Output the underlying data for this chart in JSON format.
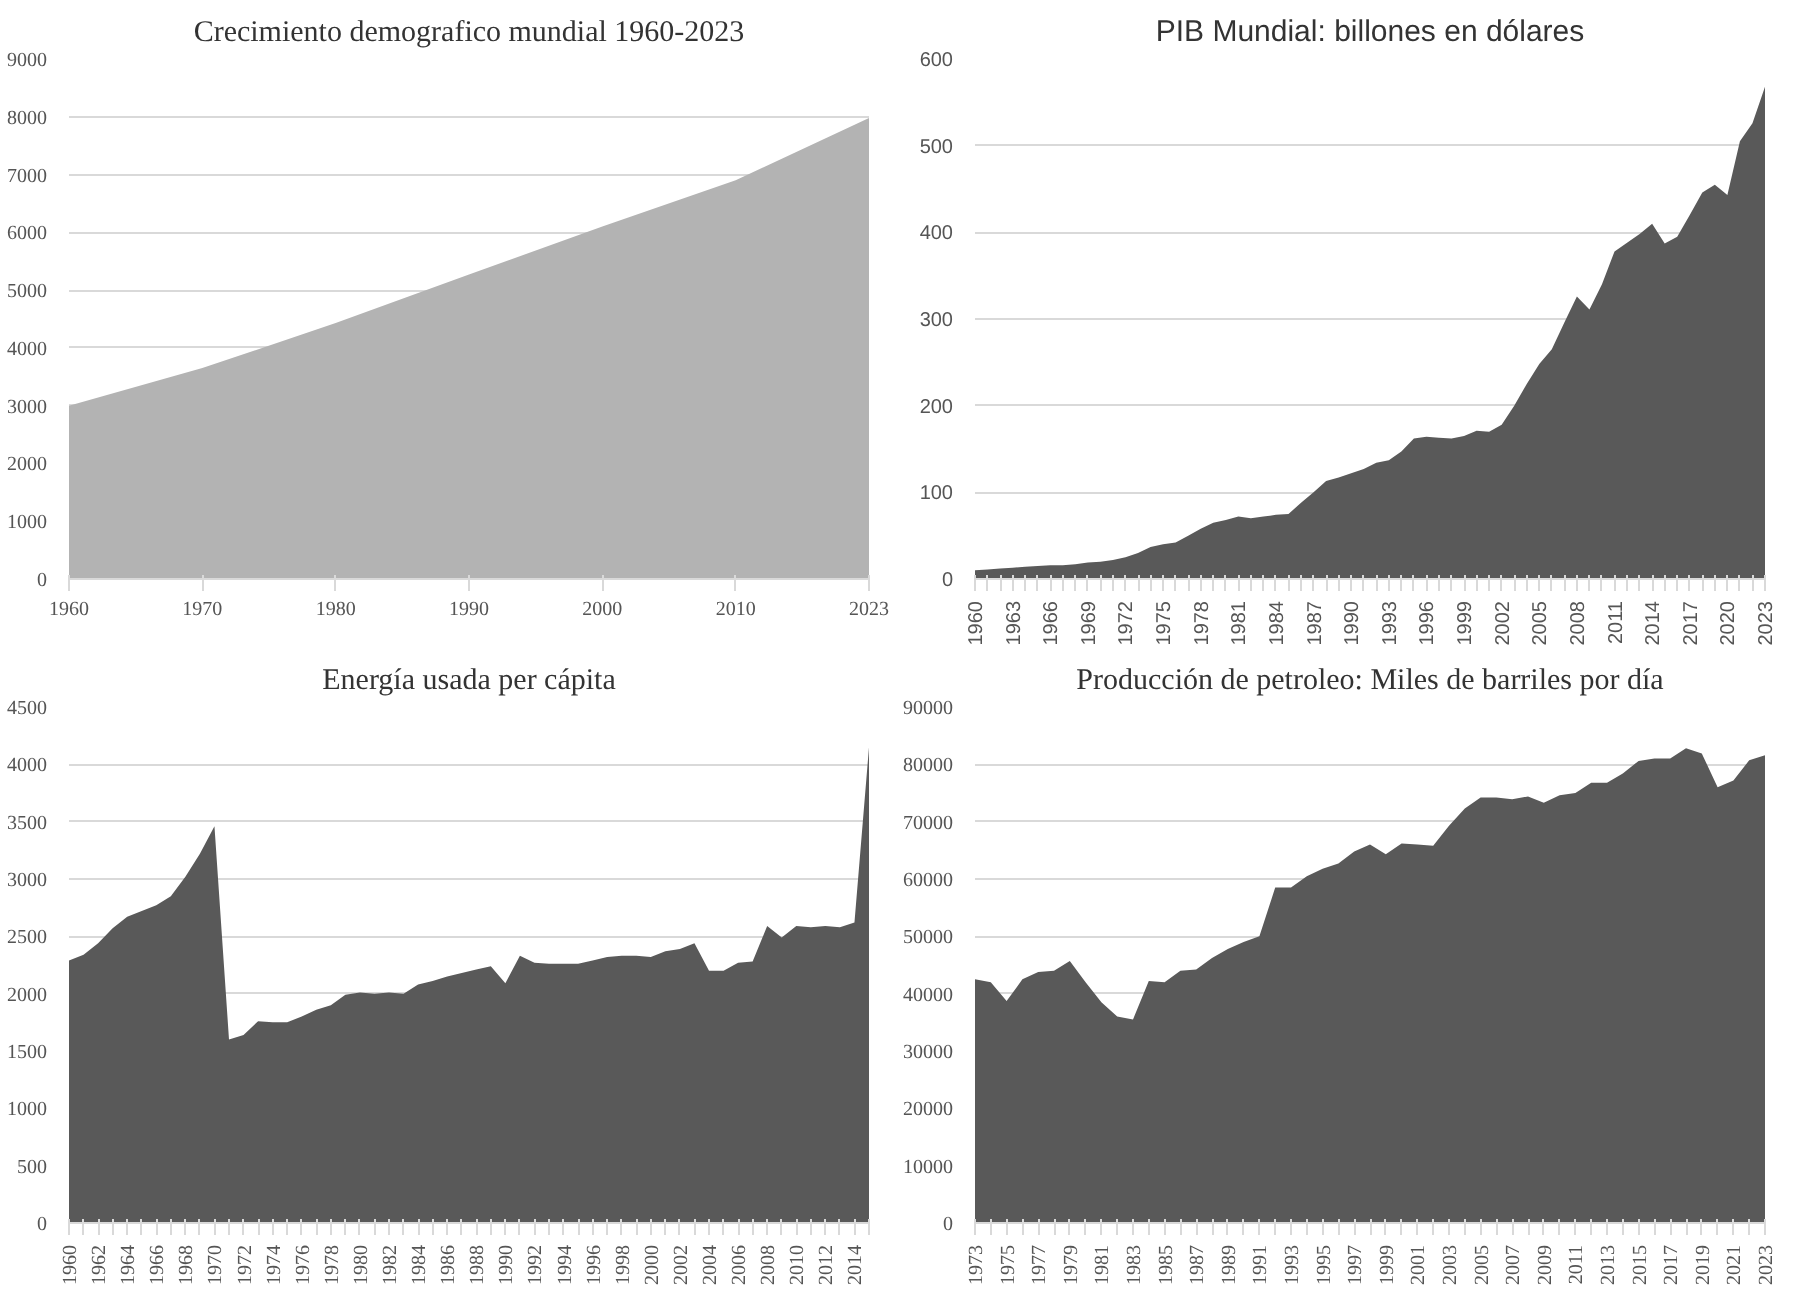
{
  "chart_data": [
    {
      "type": "area",
      "title": "Crecimiento demografico mundial 1960-2023",
      "categories": [
        "1960",
        "1970",
        "1980",
        "1990",
        "2000",
        "2010",
        "2023"
      ],
      "values": [
        3000,
        3650,
        4430,
        5270,
        6100,
        6900,
        7980
      ],
      "color": "#b3b3b3",
      "ylim": [
        0,
        9000
      ],
      "yticks": [
        0,
        1000,
        2000,
        3000,
        4000,
        5000,
        6000,
        7000,
        8000,
        9000
      ],
      "grid": "y"
    },
    {
      "type": "area",
      "title": "PIB Mundial: billones en dólares",
      "categories": [
        "1960",
        null,
        null,
        "1963",
        null,
        null,
        "1966",
        null,
        null,
        "1969",
        null,
        null,
        "1972",
        null,
        null,
        "1975",
        null,
        null,
        "1978",
        null,
        null,
        "1981",
        null,
        null,
        "1984",
        null,
        null,
        "1987",
        null,
        null,
        "1990",
        null,
        null,
        "1993",
        null,
        null,
        "1996",
        null,
        null,
        "1999",
        null,
        null,
        "2002",
        null,
        null,
        "2005",
        null,
        null,
        "2008",
        null,
        null,
        "2011",
        null,
        null,
        "2014",
        null,
        null,
        "2017",
        null,
        null,
        "2020",
        null,
        null,
        "2023"
      ],
      "values": [
        10,
        11,
        12,
        13,
        14,
        15,
        16,
        16,
        17,
        19,
        20,
        22,
        25,
        30,
        37,
        40,
        42,
        50,
        58,
        65,
        68,
        72,
        70,
        72,
        74,
        75,
        88,
        100,
        113,
        117,
        122,
        127,
        134,
        137,
        147,
        162,
        164,
        163,
        162,
        165,
        171,
        170,
        178,
        200,
        225,
        248,
        265,
        296,
        326,
        311,
        340,
        378,
        388,
        398,
        410,
        387,
        395,
        420,
        446,
        455,
        443,
        505,
        526,
        568
      ],
      "color": "#595959",
      "ylim": [
        0,
        600
      ],
      "yticks": [
        0,
        100,
        200,
        300,
        400,
        500,
        600
      ],
      "grid": "y"
    },
    {
      "type": "area",
      "title": "Energía usada per cápita",
      "categories": [
        "1960",
        null,
        "1962",
        null,
        "1964",
        null,
        "1966",
        null,
        "1968",
        null,
        "1970",
        null,
        "1972",
        null,
        "1974",
        null,
        "1976",
        null,
        "1978",
        null,
        "1980",
        null,
        "1982",
        null,
        "1984",
        null,
        "1986",
        null,
        "1988",
        null,
        "1990",
        null,
        "1992",
        null,
        "1994",
        null,
        "1996",
        null,
        "1998",
        null,
        "2000",
        null,
        "2002",
        null,
        "2004",
        null,
        "2006",
        null,
        "2008",
        null,
        "2010",
        null,
        "2012",
        null,
        "2014",
        null
      ],
      "values": [
        2290,
        2340,
        2440,
        2570,
        2670,
        2720,
        2770,
        2850,
        3020,
        3220,
        3460,
        1600,
        1640,
        1760,
        1750,
        1750,
        1800,
        1860,
        1900,
        1990,
        2010,
        2000,
        2010,
        2000,
        2080,
        2110,
        2150,
        2180,
        2210,
        2240,
        2090,
        2330,
        2270,
        2260,
        2260,
        2260,
        2290,
        2320,
        2330,
        2330,
        2320,
        2370,
        2390,
        2440,
        2200,
        2200,
        2270,
        2280,
        2590,
        2490,
        2590,
        2580,
        2590,
        2580,
        2620,
        4150
      ],
      "color": "#595959",
      "ylim": [
        0,
        4500
      ],
      "yticks": [
        0,
        500,
        1000,
        1500,
        2000,
        2500,
        3000,
        3500,
        4000,
        4500
      ],
      "grid": "y"
    },
    {
      "type": "area",
      "title": "Producción de petroleo: Miles de barriles por día",
      "categories": [
        "1973",
        null,
        "1975",
        null,
        "1977",
        null,
        "1979",
        null,
        "1981",
        null,
        "1983",
        null,
        "1985",
        null,
        "1987",
        null,
        "1989",
        null,
        "1991",
        null,
        "1993",
        null,
        "1995",
        null,
        "1997",
        null,
        "1999",
        null,
        "2001",
        null,
        "2003",
        null,
        "2005",
        null,
        "2007",
        null,
        "2009",
        null,
        "2011",
        null,
        "2013",
        null,
        "2015",
        null,
        "2017",
        null,
        "2019",
        null,
        "2021",
        null,
        "2023"
      ],
      "values": [
        42500,
        42000,
        38700,
        42500,
        43800,
        44000,
        45700,
        42000,
        38500,
        36000,
        35500,
        42200,
        42000,
        44000,
        44200,
        46200,
        47800,
        49000,
        50000,
        58500,
        58500,
        60500,
        61800,
        62700,
        64800,
        66000,
        64300,
        66200,
        66000,
        65800,
        69300,
        72300,
        74200,
        74200,
        73900,
        74400,
        73300,
        74600,
        75000,
        76800,
        76800,
        78400,
        80600,
        81000,
        81000,
        82800,
        81900,
        76000,
        77200,
        80700,
        81600
      ],
      "color": "#595959",
      "ylim": [
        0,
        90000
      ],
      "yticks": [
        0,
        10000,
        20000,
        30000,
        40000,
        50000,
        60000,
        70000,
        80000,
        90000
      ],
      "grid": "y"
    }
  ]
}
